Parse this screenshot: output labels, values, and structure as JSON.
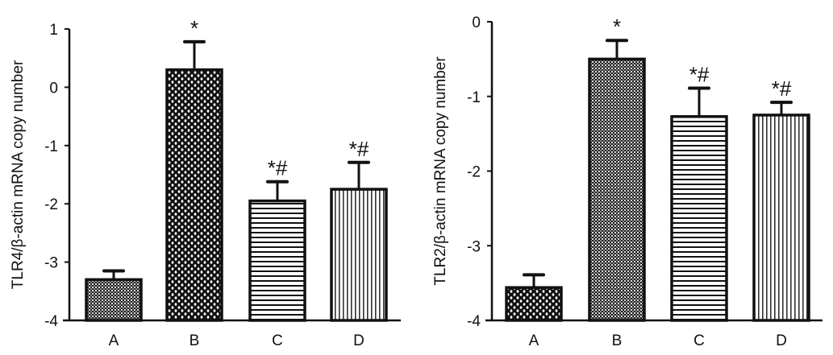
{
  "chart_data": [
    {
      "type": "bar",
      "title": "",
      "xlabel": "",
      "ylabel": "TLR4/β-actin mRNA copy number",
      "categories": [
        "A",
        "B",
        "C",
        "D"
      ],
      "values": [
        -3.3,
        0.3,
        -1.95,
        -1.75
      ],
      "error_upper": [
        -3.15,
        0.78,
        -1.62,
        -1.29
      ],
      "annotations": [
        "",
        "*",
        "*#",
        "*#"
      ],
      "patterns": [
        "fine-checker",
        "coarse-checker",
        "horizontal-lines",
        "vertical-lines"
      ],
      "ylim": [
        -4,
        1
      ],
      "yticks": [
        1,
        0,
        -1,
        -2,
        -3,
        -4
      ],
      "baseline": -4,
      "grid": false
    },
    {
      "type": "bar",
      "title": "",
      "xlabel": "",
      "ylabel": "TLR2/β-actin mRNA copy number",
      "categories": [
        "A",
        "B",
        "C",
        "D"
      ],
      "values": [
        -3.56,
        -0.5,
        -1.27,
        -1.25
      ],
      "error_upper": [
        -3.39,
        -0.25,
        -0.89,
        -1.08
      ],
      "annotations": [
        "",
        "*",
        "*#",
        "*#"
      ],
      "patterns": [
        "coarse-checker",
        "fine-checker",
        "horizontal-lines",
        "vertical-lines"
      ],
      "ylim": [
        -4,
        0
      ],
      "yticks": [
        0,
        -1,
        -2,
        -3,
        -4
      ],
      "baseline": -4,
      "grid": false
    }
  ]
}
